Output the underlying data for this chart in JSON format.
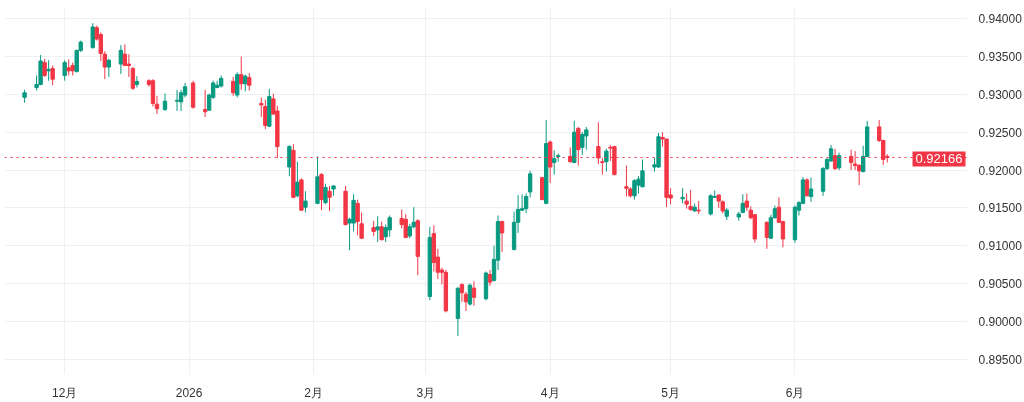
{
  "chart_data": {
    "type": "candlestick",
    "x": [
      "2025-11-21",
      "2025-11-24",
      "2025-11-25",
      "2025-11-26",
      "2025-11-27",
      "2025-11-28",
      "2025-12-01",
      "2025-12-02",
      "2025-12-03",
      "2025-12-04",
      "2025-12-05",
      "2025-12-08",
      "2025-12-09",
      "2025-12-10",
      "2025-12-11",
      "2025-12-12",
      "2025-12-15",
      "2025-12-16",
      "2025-12-17",
      "2025-12-18",
      "2025-12-19",
      "2025-12-22",
      "2025-12-23",
      "2025-12-24",
      "2025-12-26",
      "2025-12-29",
      "2025-12-30",
      "2025-12-31",
      "2026-01-02",
      "2026-01-05",
      "2026-01-06",
      "2026-01-07",
      "2026-01-08",
      "2026-01-09",
      "2026-01-12",
      "2026-01-13",
      "2026-01-14",
      "2026-01-15",
      "2026-01-16",
      "2026-01-19",
      "2026-01-20",
      "2026-01-21",
      "2026-01-22",
      "2026-01-23",
      "2026-01-26",
      "2026-01-27",
      "2026-01-28",
      "2026-01-29",
      "2026-01-30",
      "2026-02-02",
      "2026-02-03",
      "2026-02-04",
      "2026-02-05",
      "2026-02-06",
      "2026-02-09",
      "2026-02-10",
      "2026-02-11",
      "2026-02-12",
      "2026-02-13",
      "2026-02-16",
      "2026-02-17",
      "2026-02-18",
      "2026-02-19",
      "2026-02-20",
      "2026-02-23",
      "2026-02-24",
      "2026-02-25",
      "2026-02-26",
      "2026-02-27",
      "2026-03-02",
      "2026-03-03",
      "2026-03-04",
      "2026-03-05",
      "2026-03-06",
      "2026-03-09",
      "2026-03-10",
      "2026-03-11",
      "2026-03-12",
      "2026-03-13",
      "2026-03-16",
      "2026-03-17",
      "2026-03-18",
      "2026-03-19",
      "2026-03-20",
      "2026-03-23",
      "2026-03-24",
      "2026-03-25",
      "2026-03-26",
      "2026-03-27",
      "2026-03-30",
      "2026-03-31",
      "2026-04-01",
      "2026-04-02",
      "2026-04-03",
      "2026-04-06",
      "2026-04-07",
      "2026-04-08",
      "2026-04-09",
      "2026-04-10",
      "2026-04-13",
      "2026-04-14",
      "2026-04-15",
      "2026-04-16",
      "2026-04-17",
      "2026-04-20",
      "2026-04-21",
      "2026-04-22",
      "2026-04-23",
      "2026-04-24",
      "2026-04-27",
      "2026-04-28",
      "2026-04-29",
      "2026-04-30",
      "2026-05-01",
      "2026-05-04",
      "2026-05-05",
      "2026-05-06",
      "2026-05-07",
      "2026-05-08",
      "2026-05-11",
      "2026-05-12",
      "2026-05-13",
      "2026-05-14",
      "2026-05-15",
      "2026-05-18",
      "2026-05-19",
      "2026-05-20",
      "2026-05-21",
      "2026-05-22",
      "2026-05-25",
      "2026-05-26",
      "2026-05-27",
      "2026-05-28",
      "2026-05-29",
      "2026-06-01",
      "2026-06-02",
      "2026-06-03",
      "2026-06-04",
      "2026-06-05",
      "2026-06-08",
      "2026-06-09",
      "2026-06-10",
      "2026-06-11",
      "2026-06-12",
      "2026-06-15",
      "2026-06-16",
      "2026-06-17",
      "2026-06-18",
      "2026-06-19",
      "2026-06-22",
      "2026-06-23",
      "2026-06-24"
    ],
    "ohlc": [
      [
        0.9296,
        0.9306,
        0.9289,
        0.9302
      ],
      [
        0.9309,
        0.9325,
        0.9305,
        0.9313
      ],
      [
        0.9313,
        0.9352,
        0.9312,
        0.9344
      ],
      [
        0.9342,
        0.9347,
        0.9323,
        0.9325
      ],
      [
        0.9331,
        0.9345,
        0.9318,
        0.9333
      ],
      [
        0.9334,
        0.9338,
        0.9312,
        0.932
      ],
      [
        0.9325,
        0.9345,
        0.9318,
        0.9342
      ],
      [
        0.9335,
        0.9346,
        0.9325,
        0.9331
      ],
      [
        0.9338,
        0.9342,
        0.9325,
        0.9331
      ],
      [
        0.933,
        0.9359,
        0.9329,
        0.9358
      ],
      [
        0.9358,
        0.9371,
        0.9356,
        0.9369
      ],
      [
        0.9362,
        0.9394,
        0.936,
        0.9389
      ],
      [
        0.9388,
        0.9391,
        0.9371,
        0.9373
      ],
      [
        0.9379,
        0.9382,
        0.9344,
        0.9354
      ],
      [
        0.9353,
        0.9357,
        0.932,
        0.9336
      ],
      [
        0.9336,
        0.9347,
        0.9323,
        0.9345
      ],
      [
        0.934,
        0.9365,
        0.9327,
        0.9358
      ],
      [
        0.9353,
        0.9366,
        0.9338,
        0.9338
      ],
      [
        0.934,
        0.9353,
        0.9323,
        0.9338
      ],
      [
        0.9334,
        0.9336,
        0.9306,
        0.9308
      ],
      [
        0.9313,
        0.9324,
        0.9309,
        0.9317
      ],
      [
        0.9318,
        0.932,
        0.931,
        0.9313
      ],
      [
        0.9318,
        0.932,
        0.9284,
        0.9288
      ],
      [
        0.9287,
        0.9298,
        0.9274,
        0.9281
      ],
      [
        0.928,
        0.9301,
        0.9278,
        0.9291
      ],
      [
        0.9291,
        0.9306,
        0.9278,
        0.9292
      ],
      [
        0.929,
        0.9306,
        0.9278,
        0.9302
      ],
      [
        0.9299,
        0.9315,
        0.9296,
        0.931
      ],
      [
        0.9315,
        0.9318,
        0.9281,
        0.9283
      ],
      [
        0.928,
        0.9306,
        0.927,
        0.9277
      ],
      [
        0.9279,
        0.9301,
        0.9278,
        0.9299
      ],
      [
        0.9296,
        0.9318,
        0.9294,
        0.9315
      ],
      [
        0.9309,
        0.9318,
        0.9308,
        0.9312
      ],
      [
        0.9311,
        0.9325,
        0.9309,
        0.9321
      ],
      [
        0.9317,
        0.9323,
        0.9298,
        0.9302
      ],
      [
        0.9299,
        0.9329,
        0.9296,
        0.9326
      ],
      [
        0.9326,
        0.935,
        0.9306,
        0.9314
      ],
      [
        0.9314,
        0.9326,
        0.9304,
        0.9324
      ],
      [
        0.9322,
        0.9328,
        0.9305,
        0.9312
      ],
      [
        0.9288,
        0.9296,
        0.927,
        0.9286
      ],
      [
        0.9284,
        0.9293,
        0.9254,
        0.9259
      ],
      [
        0.9258,
        0.9307,
        0.9257,
        0.9297
      ],
      [
        0.9294,
        0.9301,
        0.9273,
        0.9274
      ],
      [
        0.9278,
        0.9285,
        0.9216,
        0.9231
      ],
      [
        0.9204,
        0.9233,
        0.9192,
        0.9231
      ],
      [
        0.9226,
        0.9234,
        0.9163,
        0.9164
      ],
      [
        0.9166,
        0.9211,
        0.9164,
        0.9184
      ],
      [
        0.9187,
        0.9189,
        0.9146,
        0.9147
      ],
      [
        0.9151,
        0.9172,
        0.9144,
        0.9159
      ],
      [
        0.9156,
        0.9218,
        0.9155,
        0.9191
      ],
      [
        0.9194,
        0.9196,
        0.9147,
        0.9161
      ],
      [
        0.9157,
        0.9182,
        0.9155,
        0.9177
      ],
      [
        0.9172,
        0.9179,
        0.9146,
        0.9164
      ],
      [
        0.9175,
        0.918,
        0.9166,
        0.9179
      ],
      [
        0.9172,
        0.9179,
        0.9127,
        0.9128
      ],
      [
        0.913,
        0.9137,
        0.9094,
        0.9135
      ],
      [
        0.913,
        0.9168,
        0.9119,
        0.916
      ],
      [
        0.9156,
        0.9161,
        0.9114,
        0.9132
      ],
      [
        0.9129,
        0.9144,
        0.9109,
        0.911
      ],
      [
        0.9124,
        0.9133,
        0.9113,
        0.9119
      ],
      [
        0.9121,
        0.9139,
        0.9105,
        0.9125
      ],
      [
        0.9125,
        0.9132,
        0.9107,
        0.9108
      ],
      [
        0.9112,
        0.9128,
        0.9105,
        0.9124
      ],
      [
        0.9121,
        0.914,
        0.9112,
        0.9137
      ],
      [
        0.9136,
        0.9148,
        0.9123,
        0.9128
      ],
      [
        0.9135,
        0.9142,
        0.911,
        0.9111
      ],
      [
        0.9113,
        0.9129,
        0.911,
        0.9125
      ],
      [
        0.9125,
        0.9151,
        0.9123,
        0.9131
      ],
      [
        0.9133,
        0.9135,
        0.9061,
        0.9086
      ],
      [
        0.9033,
        0.9125,
        0.9028,
        0.9111
      ],
      [
        0.9116,
        0.9127,
        0.9066,
        0.9078
      ],
      [
        0.9085,
        0.9096,
        0.9056,
        0.9065
      ],
      [
        0.9068,
        0.9071,
        0.9049,
        0.9065
      ],
      [
        0.9065,
        0.9068,
        0.9012,
        0.9014
      ],
      [
        0.9004,
        0.9045,
        0.8981,
        0.9044
      ],
      [
        0.9049,
        0.905,
        0.9026,
        0.9038
      ],
      [
        0.9036,
        0.9039,
        0.9014,
        0.9026
      ],
      [
        0.9023,
        0.905,
        0.9021,
        0.9048
      ],
      [
        0.9044,
        0.9053,
        0.9021,
        0.9032
      ],
      [
        0.903,
        0.9066,
        0.9028,
        0.9064
      ],
      [
        0.9062,
        0.9068,
        0.9047,
        0.9052
      ],
      [
        0.9054,
        0.91,
        0.9053,
        0.9082
      ],
      [
        0.9081,
        0.914,
        0.9068,
        0.9132
      ],
      [
        0.9132,
        0.9133,
        0.9092,
        0.9117
      ],
      [
        0.9095,
        0.9145,
        0.9094,
        0.9131
      ],
      [
        0.9131,
        0.9167,
        0.9117,
        0.9148
      ],
      [
        0.9147,
        0.9168,
        0.9146,
        0.9149
      ],
      [
        0.9149,
        0.9169,
        0.9143,
        0.9165
      ],
      [
        0.9171,
        0.9199,
        0.9164,
        0.9195
      ],
      [
        0.919,
        0.9191,
        0.916,
        0.9161
      ],
      [
        0.9156,
        0.9266,
        0.9155,
        0.9235
      ],
      [
        0.9237,
        0.9239,
        0.9183,
        0.9204
      ],
      [
        0.921,
        0.9226,
        0.9194,
        0.9215
      ],
      [
        0.9218,
        0.9222,
        0.9211,
        0.9219
      ],
      [
        0.9218,
        0.923,
        0.921,
        0.9211
      ],
      [
        0.921,
        0.9265,
        0.9209,
        0.925
      ],
      [
        0.9255,
        0.9257,
        0.9206,
        0.9227
      ],
      [
        0.923,
        0.925,
        0.922,
        0.9247
      ],
      [
        0.9245,
        0.9257,
        0.9227,
        0.9253
      ],
      [
        0.9231,
        0.9263,
        0.9208,
        0.9216
      ],
      [
        0.9211,
        0.9216,
        0.9194,
        0.921
      ],
      [
        0.9211,
        0.9228,
        0.9198,
        0.9225
      ],
      [
        0.923,
        0.9233,
        0.9212,
        0.9229
      ],
      [
        0.9231,
        0.9232,
        0.9193,
        0.9194
      ],
      [
        0.9178,
        0.9206,
        0.9165,
        0.9176
      ],
      [
        0.9175,
        0.9177,
        0.9164,
        0.9166
      ],
      [
        0.9166,
        0.9188,
        0.9161,
        0.9186
      ],
      [
        0.918,
        0.9192,
        0.9169,
        0.9188
      ],
      [
        0.9178,
        0.9214,
        0.9177,
        0.9199
      ],
      [
        0.9204,
        0.9216,
        0.9198,
        0.9207
      ],
      [
        0.9204,
        0.9249,
        0.9203,
        0.9244
      ],
      [
        0.9243,
        0.925,
        0.9231,
        0.9241
      ],
      [
        0.9241,
        0.9241,
        0.9151,
        0.9164
      ],
      [
        0.9167,
        0.9176,
        0.9155,
        0.9163
      ],
      [
        0.9162,
        0.9176,
        0.9156,
        0.9164
      ],
      [
        0.9159,
        0.9169,
        0.9149,
        0.9155
      ],
      [
        0.9152,
        0.9174,
        0.9146,
        0.9148
      ],
      [
        0.9146,
        0.9156,
        0.9145,
        0.9151
      ],
      [
        0.9147,
        0.9159,
        0.9142,
        0.9146
      ],
      [
        0.9142,
        0.9168,
        0.914,
        0.9166
      ],
      [
        0.9164,
        0.9173,
        0.9163,
        0.9165
      ],
      [
        0.9167,
        0.9168,
        0.915,
        0.9159
      ],
      [
        0.9158,
        0.916,
        0.9143,
        0.9146
      ],
      [
        0.9139,
        0.915,
        0.9134,
        0.9147
      ],
      [
        0.9138,
        0.9145,
        0.9133,
        0.9142
      ],
      [
        0.9144,
        0.9168,
        0.9143,
        0.9156
      ],
      [
        0.9159,
        0.9169,
        0.9146,
        0.9151
      ],
      [
        0.9147,
        0.9152,
        0.9135,
        0.9137
      ],
      [
        0.9141,
        0.9142,
        0.9104,
        0.9109
      ],
      [
        0.9131,
        0.9132,
        0.9096,
        0.9111
      ],
      [
        0.911,
        0.9141,
        0.9109,
        0.9137
      ],
      [
        0.9137,
        0.9153,
        0.9136,
        0.9149
      ],
      [
        0.9151,
        0.9164,
        0.913,
        0.9131
      ],
      [
        0.9132,
        0.9133,
        0.9098,
        0.9109
      ],
      [
        0.9108,
        0.9153,
        0.9104,
        0.9151
      ],
      [
        0.9147,
        0.9159,
        0.914,
        0.9157
      ],
      [
        0.9156,
        0.9191,
        0.9155,
        0.9187
      ],
      [
        0.9187,
        0.9189,
        0.9165,
        0.9166
      ],
      [
        0.9165,
        0.919,
        0.9158,
        0.9175
      ],
      [
        0.9172,
        0.9204,
        0.9166,
        0.9202
      ],
      [
        0.9202,
        0.9216,
        0.92,
        0.9214
      ],
      [
        0.9212,
        0.9233,
        0.9211,
        0.9228
      ],
      [
        0.9219,
        0.9228,
        0.92,
        0.9202
      ],
      [
        0.9203,
        0.9223,
        0.92,
        0.9219
      ],
      [
        0.9218,
        0.9227,
        0.92,
        0.921
      ],
      [
        0.9208,
        0.9225,
        0.92,
        0.9206
      ],
      [
        0.9206,
        0.9208,
        0.918,
        0.9199
      ],
      [
        0.9198,
        0.9232,
        0.9197,
        0.9218
      ],
      [
        0.9218,
        0.9265,
        0.9218,
        0.9257
      ],
      [
        0.9257,
        0.9266,
        0.9237,
        0.9239
      ],
      [
        0.9239,
        0.924,
        0.9207,
        0.9214
      ],
      [
        0.9218,
        0.9221,
        0.921,
        0.92166
      ]
    ],
    "xlim": [
      "2025-11-16",
      "2026-07-14"
    ],
    "xticks": [
      {
        "value": "2025-12-01",
        "label": "12月"
      },
      {
        "value": "2026-01-01",
        "label": "2026"
      },
      {
        "value": "2026-02-01",
        "label": "2月"
      },
      {
        "value": "2026-03-01",
        "label": "3月"
      },
      {
        "value": "2026-04-01",
        "label": "4月"
      },
      {
        "value": "2026-05-01",
        "label": "5月"
      },
      {
        "value": "2026-06-01",
        "label": "6月"
      }
    ],
    "ylim": [
      0.893,
      0.9416
    ],
    "yticks": [
      {
        "value": 0.895,
        "label": "0.89500"
      },
      {
        "value": 0.9,
        "label": "0.90000"
      },
      {
        "value": 0.905,
        "label": "0.90500"
      },
      {
        "value": 0.91,
        "label": "0.91000"
      },
      {
        "value": 0.915,
        "label": "0.91500"
      },
      {
        "value": 0.92,
        "label": "0.92000"
      },
      {
        "value": 0.925,
        "label": "0.92500"
      },
      {
        "value": 0.93,
        "label": "0.93000"
      },
      {
        "value": 0.935,
        "label": "0.93500"
      },
      {
        "value": 0.94,
        "label": "0.94000"
      }
    ],
    "grid": true,
    "ref_lines": [
      {
        "axis": "y",
        "value": 0.92166,
        "label": "0.92166",
        "color": "#f23645",
        "line_style": "dotted"
      }
    ]
  }
}
